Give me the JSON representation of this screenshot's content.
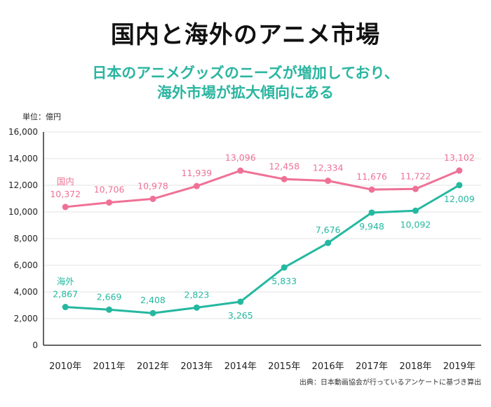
{
  "chart_data": {
    "type": "line",
    "title": "国内と海外のアニメ市場",
    "subtitle": [
      "日本のアニメグッズのニーズが増加しており、",
      "海外市場が拡大傾向にある"
    ],
    "unit_label": "単位：億円",
    "source": "出典：日本動画協会が行っているアンケートに基づき算出",
    "categories": [
      "2010年",
      "2011年",
      "2012年",
      "2013年",
      "2014年",
      "2015年",
      "2016年",
      "2017年",
      "2018年",
      "2019年"
    ],
    "ylim": [
      0,
      16000
    ],
    "yticks": [
      "0",
      "2,000",
      "4,000",
      "6,000",
      "8,000",
      "10,000",
      "12,000",
      "14,000",
      "16,000"
    ],
    "grid": true,
    "series": [
      {
        "name": "国内",
        "color": "#ef7196",
        "values": [
          10372,
          10706,
          10978,
          11939,
          13096,
          12458,
          12334,
          11676,
          11722,
          13102
        ],
        "labels": [
          "10,372",
          "10,706",
          "10,978",
          "11,939",
          "13,096",
          "12,458",
          "12,334",
          "11,676",
          "11,722",
          "13,102"
        ]
      },
      {
        "name": "海外",
        "color": "#25b8a0",
        "values": [
          2867,
          2669,
          2408,
          2823,
          3265,
          5833,
          7676,
          9948,
          10092,
          12009
        ],
        "labels": [
          "2,867",
          "2,669",
          "2,408",
          "2,823",
          "3,265",
          "5,833",
          "7,676",
          "9,948",
          "10,092",
          "12,009"
        ]
      }
    ]
  }
}
